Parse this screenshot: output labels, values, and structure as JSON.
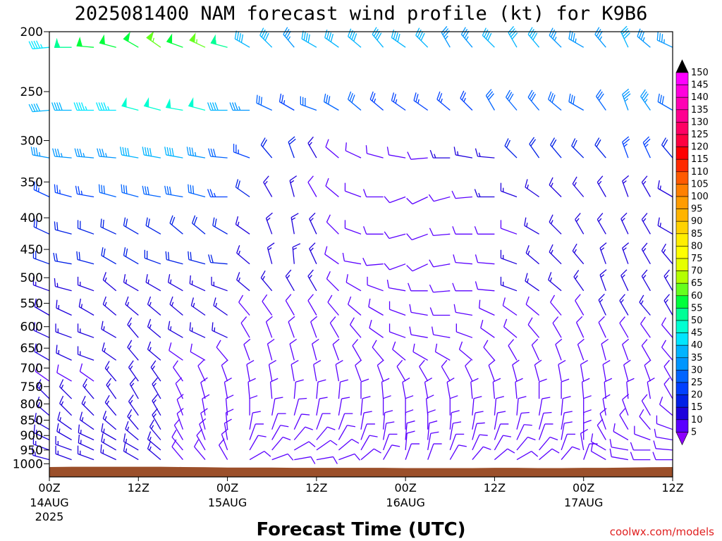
{
  "chart_data": {
    "type": "wind-barb-profile",
    "title": "2025081400 NAM forecast wind profile (kt) for K9B6",
    "xlabel": "Forecast Time (UTC)",
    "ylabel": "",
    "credit": "coolwx.com/models",
    "units": "kt",
    "y_axis": {
      "scale": "log-pressure",
      "range": [
        1050,
        200
      ],
      "ticks": [
        200,
        250,
        300,
        350,
        400,
        450,
        500,
        550,
        600,
        650,
        700,
        750,
        800,
        850,
        900,
        950,
        1000
      ]
    },
    "x_axis": {
      "range_hours": [
        0,
        84
      ],
      "ticks": [
        {
          "hour": 0,
          "time": "00Z",
          "date": "14AUG",
          "year": "2025"
        },
        {
          "hour": 12,
          "time": "12Z",
          "date": "",
          "year": ""
        },
        {
          "hour": 24,
          "time": "00Z",
          "date": "15AUG",
          "year": ""
        },
        {
          "hour": 36,
          "time": "12Z",
          "date": "",
          "year": ""
        },
        {
          "hour": 48,
          "time": "00Z",
          "date": "16AUG",
          "year": ""
        },
        {
          "hour": 60,
          "time": "12Z",
          "date": "",
          "year": ""
        },
        {
          "hour": 72,
          "time": "00Z",
          "date": "17AUG",
          "year": ""
        },
        {
          "hour": 84,
          "time": "12Z",
          "date": "",
          "year": ""
        }
      ]
    },
    "barb_levels_hpa": [
      212,
      268,
      320,
      370,
      425,
      475,
      525,
      575,
      625,
      680,
      735,
      785,
      835,
      880,
      915,
      950,
      985,
      1030
    ],
    "barb_times_hours": [
      0,
      3,
      6,
      9,
      12,
      15,
      18,
      21,
      24,
      27,
      30,
      33,
      36,
      39,
      42,
      45,
      48,
      51,
      54,
      57,
      60,
      63,
      66,
      69,
      72,
      75,
      78,
      81,
      84
    ],
    "wind_direction_deg": [
      [
        265,
        270,
        275,
        285,
        300,
        305,
        290,
        295,
        285,
        300,
        315,
        320,
        300,
        305,
        310,
        320,
        305,
        315,
        330,
        320,
        315,
        330,
        320,
        315,
        300,
        320,
        335,
        310,
        295
      ],
      [
        265,
        270,
        270,
        270,
        285,
        285,
        280,
        285,
        270,
        270,
        295,
        300,
        290,
        300,
        310,
        310,
        305,
        305,
        310,
        315,
        330,
        320,
        320,
        310,
        300,
        325,
        340,
        325,
        300
      ],
      [
        280,
        275,
        275,
        275,
        280,
        280,
        280,
        280,
        275,
        290,
        320,
        340,
        330,
        310,
        295,
        285,
        280,
        265,
        270,
        280,
        275,
        315,
        325,
        320,
        315,
        320,
        340,
        335,
        320
      ],
      [
        295,
        285,
        280,
        285,
        285,
        280,
        280,
        285,
        270,
        305,
        330,
        345,
        330,
        310,
        290,
        270,
        250,
        245,
        255,
        265,
        270,
        290,
        305,
        315,
        320,
        330,
        340,
        330,
        300
      ],
      [
        295,
        285,
        290,
        295,
        300,
        300,
        310,
        310,
        300,
        305,
        340,
        350,
        335,
        315,
        290,
        270,
        255,
        250,
        265,
        270,
        270,
        290,
        300,
        315,
        330,
        330,
        335,
        330,
        300
      ],
      [
        290,
        280,
        285,
        300,
        300,
        290,
        285,
        285,
        275,
        310,
        345,
        355,
        335,
        305,
        280,
        265,
        250,
        245,
        260,
        275,
        275,
        290,
        310,
        315,
        320,
        340,
        340,
        330,
        320
      ],
      [
        290,
        285,
        290,
        310,
        300,
        300,
        300,
        295,
        290,
        310,
        320,
        330,
        330,
        315,
        300,
        290,
        280,
        270,
        265,
        270,
        275,
        290,
        305,
        310,
        325,
        340,
        335,
        330,
        330
      ],
      [
        300,
        295,
        300,
        310,
        310,
        310,
        310,
        305,
        305,
        320,
        325,
        330,
        330,
        320,
        310,
        300,
        290,
        280,
        270,
        280,
        295,
        305,
        310,
        320,
        330,
        335,
        330,
        320,
        330
      ],
      [
        295,
        290,
        290,
        300,
        320,
        310,
        300,
        295,
        295,
        330,
        340,
        340,
        340,
        330,
        320,
        305,
        290,
        280,
        280,
        290,
        305,
        310,
        320,
        330,
        335,
        335,
        330,
        325,
        320
      ],
      [
        300,
        295,
        290,
        305,
        320,
        310,
        305,
        300,
        320,
        340,
        345,
        345,
        345,
        340,
        330,
        320,
        310,
        300,
        300,
        310,
        320,
        330,
        335,
        340,
        340,
        345,
        340,
        330,
        320
      ],
      [
        305,
        300,
        305,
        320,
        325,
        325,
        325,
        335,
        340,
        350,
        350,
        350,
        350,
        350,
        340,
        340,
        330,
        330,
        330,
        335,
        340,
        345,
        345,
        350,
        350,
        350,
        345,
        340,
        330
      ],
      [
        315,
        315,
        320,
        325,
        330,
        330,
        335,
        345,
        350,
        355,
        355,
        5,
        5,
        5,
        0,
        355,
        350,
        350,
        350,
        355,
        355,
        355,
        0,
        0,
        355,
        355,
        355,
        350,
        330
      ],
      [
        310,
        315,
        315,
        320,
        325,
        330,
        340,
        350,
        355,
        0,
        10,
        15,
        10,
        10,
        5,
        0,
        0,
        355,
        0,
        5,
        5,
        5,
        10,
        5,
        0,
        350,
        340,
        330,
        310
      ],
      [
        300,
        305,
        305,
        310,
        320,
        330,
        340,
        345,
        355,
        10,
        20,
        25,
        20,
        20,
        10,
        5,
        0,
        0,
        5,
        10,
        10,
        15,
        15,
        10,
        0,
        340,
        330,
        320,
        290
      ],
      [
        295,
        300,
        295,
        300,
        310,
        320,
        330,
        340,
        350,
        20,
        30,
        40,
        40,
        30,
        20,
        10,
        5,
        5,
        10,
        15,
        20,
        25,
        20,
        10,
        0,
        330,
        300,
        290,
        280
      ],
      [
        290,
        290,
        295,
        300,
        300,
        310,
        320,
        330,
        340,
        30,
        40,
        60,
        55,
        50,
        30,
        20,
        5,
        10,
        20,
        25,
        30,
        40,
        40,
        20,
        350,
        300,
        280,
        270,
        275
      ],
      [
        285,
        290,
        290,
        295,
        300,
        310,
        320,
        320,
        330,
        60,
        70,
        80,
        80,
        70,
        50,
        30,
        20,
        20,
        30,
        40,
        50,
        60,
        50,
        40,
        20,
        300,
        280,
        270,
        270
      ],
      [
        260,
        270,
        280,
        290,
        300,
        300,
        310,
        320,
        330,
        80,
        90,
        100,
        110,
        100,
        80,
        60,
        50,
        60,
        70,
        80,
        90,
        100,
        90,
        70,
        60,
        300,
        280,
        275,
        270
      ]
    ],
    "wind_speed_kt": [
      [
        45,
        55,
        60,
        60,
        60,
        65,
        60,
        65,
        55,
        40,
        40,
        35,
        40,
        40,
        40,
        40,
        40,
        40,
        35,
        35,
        40,
        40,
        40,
        35,
        35,
        35,
        40,
        35,
        35
      ],
      [
        40,
        40,
        45,
        45,
        50,
        50,
        50,
        50,
        40,
        35,
        30,
        25,
        30,
        30,
        30,
        25,
        25,
        25,
        25,
        25,
        30,
        30,
        30,
        30,
        30,
        30,
        35,
        35,
        30
      ],
      [
        35,
        35,
        35,
        35,
        40,
        40,
        40,
        35,
        30,
        25,
        20,
        20,
        15,
        10,
        10,
        10,
        10,
        10,
        15,
        15,
        15,
        20,
        20,
        20,
        20,
        20,
        25,
        25,
        20
      ],
      [
        25,
        25,
        25,
        30,
        30,
        30,
        30,
        30,
        25,
        20,
        15,
        15,
        10,
        10,
        10,
        10,
        10,
        10,
        10,
        10,
        15,
        15,
        15,
        15,
        15,
        15,
        15,
        15,
        15
      ],
      [
        20,
        20,
        20,
        20,
        20,
        20,
        20,
        20,
        20,
        15,
        15,
        15,
        15,
        10,
        10,
        10,
        10,
        10,
        10,
        10,
        10,
        10,
        15,
        15,
        15,
        15,
        15,
        15,
        15
      ],
      [
        20,
        20,
        20,
        20,
        20,
        20,
        20,
        20,
        20,
        15,
        15,
        15,
        15,
        10,
        10,
        10,
        10,
        10,
        10,
        10,
        10,
        15,
        15,
        15,
        15,
        15,
        15,
        15,
        15
      ],
      [
        15,
        15,
        15,
        15,
        15,
        15,
        15,
        15,
        15,
        15,
        15,
        15,
        15,
        10,
        10,
        10,
        10,
        10,
        10,
        10,
        10,
        15,
        15,
        15,
        15,
        15,
        15,
        15,
        15
      ],
      [
        15,
        15,
        15,
        15,
        15,
        15,
        15,
        15,
        15,
        10,
        10,
        10,
        10,
        10,
        10,
        10,
        10,
        10,
        10,
        10,
        10,
        10,
        10,
        10,
        10,
        15,
        15,
        15,
        15
      ],
      [
        15,
        15,
        15,
        15,
        15,
        15,
        15,
        15,
        15,
        10,
        10,
        10,
        10,
        10,
        10,
        10,
        10,
        10,
        10,
        10,
        10,
        10,
        10,
        10,
        10,
        10,
        10,
        10,
        10
      ],
      [
        15,
        15,
        15,
        15,
        15,
        15,
        10,
        10,
        10,
        10,
        10,
        10,
        10,
        10,
        10,
        10,
        10,
        10,
        10,
        10,
        10,
        10,
        10,
        10,
        10,
        10,
        10,
        10,
        10
      ],
      [
        10,
        10,
        10,
        15,
        15,
        15,
        10,
        10,
        10,
        10,
        10,
        10,
        10,
        10,
        10,
        10,
        10,
        10,
        10,
        10,
        10,
        10,
        10,
        10,
        10,
        10,
        10,
        10,
        10
      ],
      [
        15,
        15,
        15,
        15,
        15,
        15,
        10,
        10,
        10,
        10,
        10,
        10,
        10,
        10,
        10,
        10,
        10,
        10,
        10,
        10,
        10,
        10,
        10,
        10,
        10,
        10,
        10,
        10,
        10
      ],
      [
        15,
        15,
        15,
        15,
        15,
        15,
        10,
        10,
        10,
        10,
        10,
        10,
        10,
        10,
        10,
        10,
        10,
        10,
        10,
        10,
        10,
        10,
        10,
        10,
        10,
        10,
        10,
        10,
        10
      ],
      [
        15,
        15,
        15,
        15,
        15,
        15,
        10,
        10,
        10,
        10,
        10,
        10,
        10,
        10,
        10,
        10,
        10,
        10,
        10,
        10,
        10,
        10,
        10,
        10,
        10,
        10,
        10,
        10,
        10
      ],
      [
        15,
        15,
        15,
        15,
        15,
        15,
        10,
        10,
        10,
        10,
        10,
        10,
        10,
        10,
        10,
        10,
        10,
        10,
        10,
        10,
        10,
        10,
        10,
        10,
        10,
        10,
        10,
        10,
        10
      ],
      [
        15,
        15,
        15,
        15,
        15,
        15,
        10,
        10,
        10,
        10,
        10,
        10,
        10,
        10,
        10,
        10,
        10,
        10,
        10,
        10,
        10,
        10,
        10,
        10,
        10,
        10,
        10,
        10,
        10
      ],
      [
        15,
        15,
        15,
        15,
        15,
        15,
        10,
        10,
        10,
        10,
        10,
        10,
        10,
        10,
        10,
        10,
        10,
        10,
        10,
        10,
        10,
        10,
        10,
        10,
        10,
        10,
        10,
        10,
        10
      ],
      [
        10,
        10,
        10,
        10,
        10,
        10,
        5,
        5,
        5,
        5,
        5,
        5,
        5,
        5,
        5,
        5,
        5,
        5,
        5,
        5,
        5,
        5,
        5,
        5,
        5,
        5,
        5,
        10,
        10
      ]
    ],
    "surface_pressure_hpa": [
      1012,
      1011,
      1011,
      1011,
      1011,
      1011,
      1012,
      1013,
      1014,
      1014,
      1014,
      1015,
      1015,
      1015,
      1015,
      1015,
      1016,
      1016,
      1016,
      1016,
      1015,
      1015,
      1016,
      1016,
      1015,
      1015,
      1014,
      1013,
      1012
    ],
    "terrain_color": "#9b4f2a",
    "colorbar": {
      "labels": [
        150,
        145,
        140,
        135,
        130,
        125,
        120,
        115,
        110,
        105,
        100,
        95,
        90,
        85,
        80,
        75,
        70,
        65,
        60,
        55,
        50,
        45,
        40,
        35,
        30,
        25,
        20,
        15,
        10,
        5
      ],
      "colors": [
        "#ff00ff",
        "#ff00dd",
        "#ff00b4",
        "#ff0090",
        "#ff0064",
        "#ff0040",
        "#ff0000",
        "#ff2a00",
        "#ff5a00",
        "#ff8000",
        "#ff9c00",
        "#ffb400",
        "#ffd200",
        "#ffee00",
        "#ffff00",
        "#e6ff00",
        "#b4ff00",
        "#66ff1e",
        "#00ff3c",
        "#00ff96",
        "#00ffd2",
        "#00e6ff",
        "#00b4ff",
        "#0096ff",
        "#0064ff",
        "#0040ff",
        "#0020e6",
        "#1e00dc",
        "#5a00ff",
        "#8c00ff"
      ],
      "end_colors": {
        "top": "#000000",
        "bottom": "#8c00ff"
      }
    }
  }
}
